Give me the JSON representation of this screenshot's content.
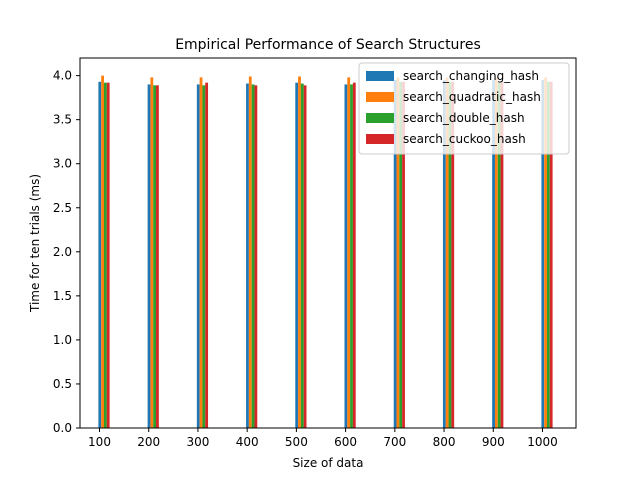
{
  "chart_data": {
    "type": "bar",
    "title": "Empirical Performance of Search Structures",
    "xlabel": "Size of data",
    "ylabel": "Time for ten trials (ms)",
    "categories": [
      "100",
      "200",
      "300",
      "400",
      "500",
      "600",
      "700",
      "800",
      "900",
      "1000"
    ],
    "xlim": [
      100,
      1000
    ],
    "ylim": [
      0,
      4.2
    ],
    "yticks": [
      "0.0",
      "0.5",
      "1.0",
      "1.5",
      "2.0",
      "2.5",
      "3.0",
      "3.5",
      "4.0"
    ],
    "legend_position": "top-right",
    "grid": false,
    "series": [
      {
        "name": "search_changing_hash",
        "color": "#1f77b4",
        "values": [
          3.93,
          3.9,
          3.9,
          3.91,
          3.92,
          3.9,
          3.95,
          3.95,
          3.95,
          3.95
        ]
      },
      {
        "name": "search_quadratic_hash",
        "color": "#ff7f0e",
        "values": [
          4.0,
          3.98,
          3.98,
          3.99,
          3.99,
          3.98,
          3.98,
          3.98,
          3.98,
          3.98
        ]
      },
      {
        "name": "search_double_hash",
        "color": "#2ca02c",
        "values": [
          3.92,
          3.89,
          3.89,
          3.9,
          3.91,
          3.9,
          3.93,
          3.93,
          3.93,
          3.93
        ]
      },
      {
        "name": "search_cuckoo_hash",
        "color": "#d62728",
        "values": [
          3.92,
          3.89,
          3.92,
          3.89,
          3.89,
          3.92,
          3.93,
          3.93,
          3.93,
          3.93
        ]
      }
    ]
  }
}
